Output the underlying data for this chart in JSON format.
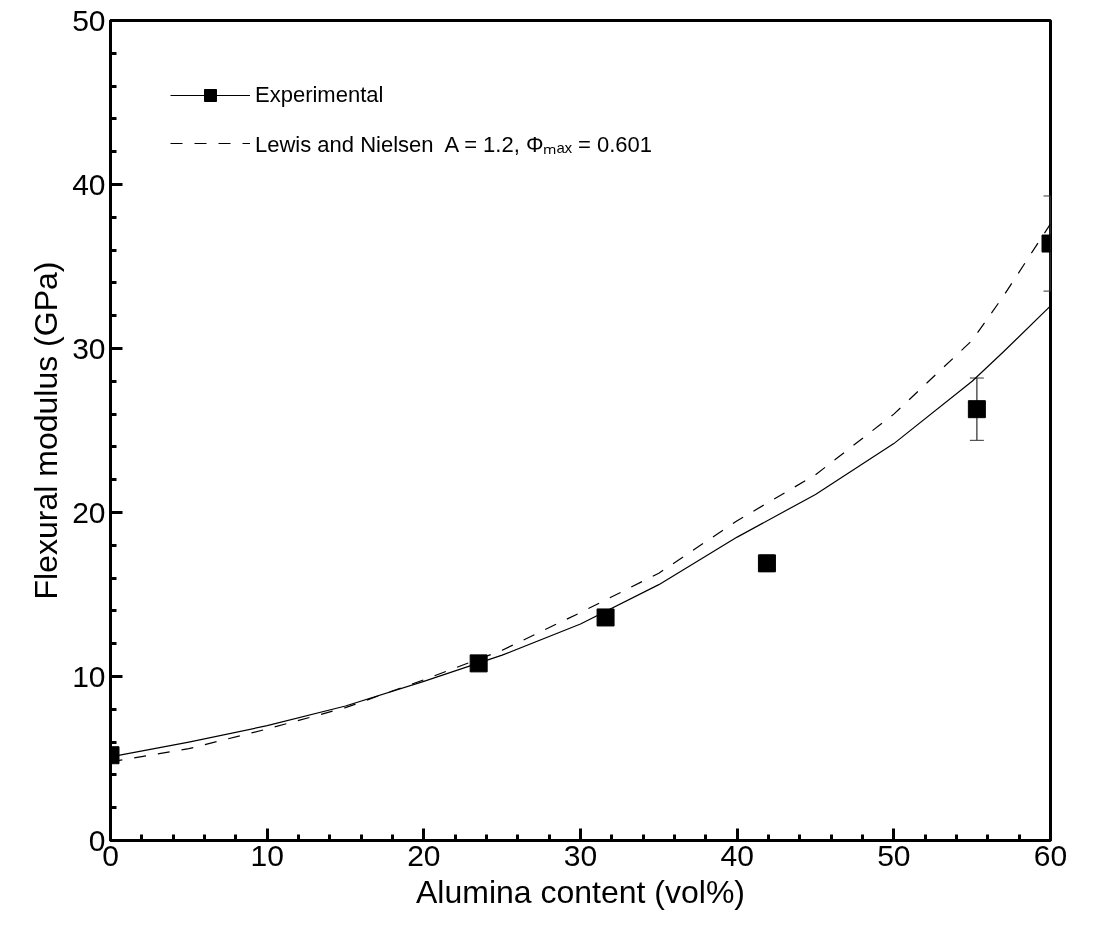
{
  "chart_data": {
    "type": "scatter",
    "xlabel": "Alumina content (vol%)",
    "ylabel": "Flexural modulus (GPa)",
    "xlim": [
      0,
      60
    ],
    "ylim": [
      0,
      50
    ],
    "xticks": [
      0,
      10,
      20,
      30,
      40,
      50,
      60
    ],
    "yticks": [
      0,
      10,
      20,
      30,
      40,
      50
    ],
    "grid": false,
    "legend": "top left",
    "series": [
      {
        "name": "Experimental",
        "marker": "square",
        "color": "#000000",
        "x": [
          0,
          23.5,
          31.6,
          41.9,
          55.3,
          60
        ],
        "values": [
          5.2,
          10.8,
          13.6,
          16.9,
          26.3,
          36.4
        ],
        "errors": [
          null,
          null,
          null,
          0.5,
          1.9,
          2.9
        ]
      },
      {
        "type": "line",
        "marker": "none",
        "color": "#000000",
        "line_style": "solid",
        "x": [
          0,
          5,
          10,
          15,
          20,
          25,
          30,
          35,
          40,
          45,
          50,
          55,
          57,
          60
        ],
        "values": [
          5.1,
          6.0,
          7.0,
          8.2,
          9.7,
          11.3,
          13.2,
          15.6,
          18.5,
          21.1,
          24.2,
          28.0,
          29.8,
          32.6
        ]
      },
      {
        "name": "Lewis and Nielsen  A = 1.2, Φₘₐₓ = 0.601",
        "type": "line",
        "marker": "none",
        "color": "#000000",
        "line_style": "dashed",
        "x": [
          0,
          5,
          10,
          15,
          20,
          25,
          30,
          35,
          40,
          45,
          50,
          55,
          57,
          60
        ],
        "values": [
          4.8,
          5.6,
          6.8,
          8.1,
          9.8,
          11.6,
          13.9,
          16.3,
          19.5,
          22.3,
          26.0,
          30.5,
          33.2,
          37.6
        ]
      }
    ]
  }
}
